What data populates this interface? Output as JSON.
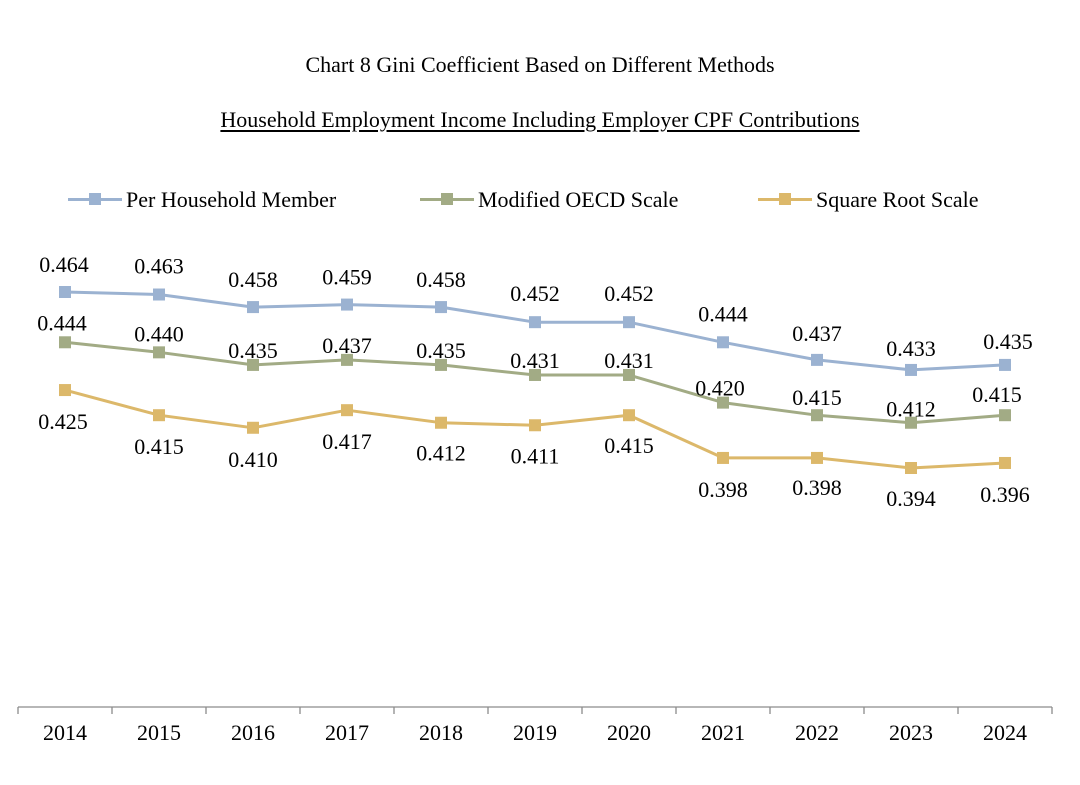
{
  "chart_data": {
    "type": "line",
    "title": "Chart 8 Gini Coefficient Based on Different Methods",
    "subtitle": "Household Employment Income Including Employer CPF Contributions",
    "categories": [
      "2014",
      "2015",
      "2016",
      "2017",
      "2018",
      "2019",
      "2020",
      "2021",
      "2022",
      "2023",
      "2024"
    ],
    "series": [
      {
        "name": "Per Household Member",
        "color": "#9bb2d1",
        "values": [
          0.464,
          0.463,
          0.458,
          0.459,
          0.458,
          0.452,
          0.452,
          0.444,
          0.437,
          0.433,
          0.435
        ],
        "labels": [
          "0.464",
          "0.463",
          "0.458",
          "0.459",
          "0.458",
          "0.452",
          "0.452",
          "0.444",
          "0.437",
          "0.433",
          "0.435"
        ]
      },
      {
        "name": "Modified OECD Scale",
        "color": "#a2ab85",
        "values": [
          0.444,
          0.44,
          0.435,
          0.437,
          0.435,
          0.431,
          0.431,
          0.42,
          0.415,
          0.412,
          0.415
        ],
        "labels": [
          "0.444",
          "0.440",
          "0.435",
          "0.437",
          "0.435",
          "0.431",
          "0.431",
          "0.420",
          "0.415",
          "0.412",
          "0.415"
        ]
      },
      {
        "name": "Square Root Scale",
        "color": "#dcb86a",
        "values": [
          0.425,
          0.415,
          0.41,
          0.417,
          0.412,
          0.411,
          0.415,
          0.398,
          0.398,
          0.394,
          0.396
        ],
        "labels": [
          "0.425",
          "0.415",
          "0.410",
          "0.417",
          "0.412",
          "0.411",
          "0.415",
          "0.398",
          "0.398",
          "0.394",
          "0.396"
        ]
      }
    ],
    "legend_position": "top",
    "grid": false,
    "y_axis_visible": false
  }
}
